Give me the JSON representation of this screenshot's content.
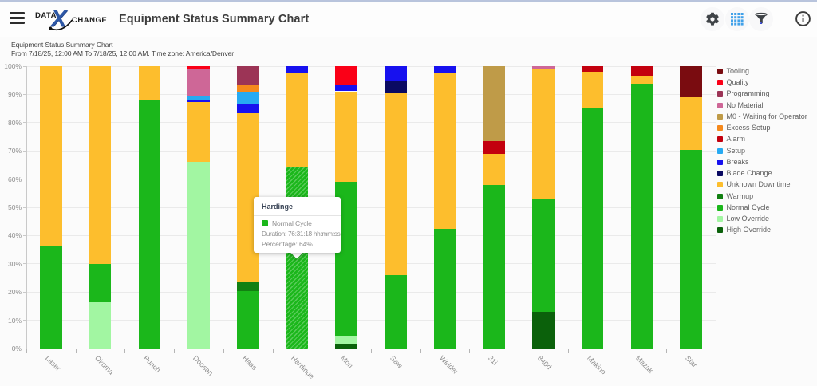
{
  "window": {
    "top_strip_color": "#b9c4dd"
  },
  "header": {
    "logo": {
      "part1": "DATA",
      "x": "X",
      "part2": "CHANGE"
    },
    "title": "Equipment Status Summary Chart",
    "icons": [
      "menu-icon",
      "gear-icon",
      "grid-icon",
      "filter-icon",
      "info-icon"
    ],
    "accent_blue": "#2d57a6",
    "grid_icon_color": "#41a1e9"
  },
  "chart": {
    "title": "Equipment Status Summary Chart",
    "subtitle": "From 7/18/25, 12:00 AM To 7/18/25, 12:00 AM. Time zone: America/Denver"
  },
  "tooltip": {
    "title": "Hardinge",
    "series": "Normal Cycle",
    "swatch_color": "#1BB71B",
    "duration_line": "Duration: 76:31:18 hh:mm:ss",
    "percentage_line": "Percentage: 64%"
  },
  "chart_data": {
    "type": "bar",
    "stacked": true,
    "title": "Equipment Status Summary Chart",
    "subtitle": "From 7/18/25, 12:00 AM To 7/18/25, 12:00 AM. Time zone: America/Denver",
    "xlabel": "",
    "ylabel": "",
    "ylim": [
      0,
      100
    ],
    "y_tick_labels": [
      "0%",
      "10%",
      "20%",
      "30%",
      "40%",
      "50%",
      "60%",
      "70%",
      "80%",
      "90%",
      "100%"
    ],
    "grid": true,
    "legend_position": "right",
    "categories": [
      "Laser",
      "Okuma",
      "Punch",
      "Doosan",
      "Haas",
      "Hardinge",
      "Mori",
      "Saw",
      "Welder",
      "31i",
      "840d",
      "Makino",
      "Mazak",
      "Star"
    ],
    "series": [
      {
        "name": "Tooling",
        "color": "#7A0C10",
        "values": [
          0,
          0,
          0,
          0,
          0,
          0,
          0,
          0,
          0,
          0,
          0,
          0,
          0,
          10.6
        ]
      },
      {
        "name": "Quality",
        "color": "#FA0017",
        "values": [
          0,
          0,
          0,
          0.9,
          0,
          0,
          6.8,
          0,
          0,
          0,
          0,
          0,
          0,
          0
        ]
      },
      {
        "name": "Programming",
        "color": "#9C3456",
        "values": [
          0,
          0,
          0,
          0,
          6.8,
          0,
          0,
          0,
          0,
          0,
          0,
          0,
          0,
          0
        ]
      },
      {
        "name": "No Material",
        "color": "#CE6797",
        "values": [
          0,
          0,
          0,
          9.6,
          0,
          0,
          0,
          0,
          0,
          0,
          1,
          0,
          0,
          0
        ]
      },
      {
        "name": "M0 - Waiting for Operator",
        "color": "#BF9B48",
        "values": [
          0,
          0,
          0,
          0,
          0,
          0,
          0,
          0,
          0,
          26.5,
          0,
          0,
          0,
          0
        ]
      },
      {
        "name": "Excess Setup",
        "color": "#F5891C",
        "values": [
          0,
          0,
          0,
          0,
          2.2,
          0,
          0,
          0,
          0,
          0,
          0,
          0,
          0,
          0
        ]
      },
      {
        "name": "Alarm",
        "color": "#C3000E",
        "values": [
          0,
          0,
          0,
          0,
          0,
          0,
          0,
          0,
          0,
          4.5,
          0,
          1.9,
          3.3,
          0
        ]
      },
      {
        "name": "Setup",
        "color": "#27AAF2",
        "values": [
          0,
          0,
          0,
          1.4,
          4.2,
          0,
          0,
          0,
          0,
          0,
          0,
          0,
          0,
          0
        ]
      },
      {
        "name": "Breaks",
        "color": "#1711EF",
        "values": [
          0,
          0,
          0,
          0.8,
          3.4,
          2.5,
          2.1,
          5.4,
          2.6,
          0,
          0,
          0,
          0,
          0
        ]
      },
      {
        "name": "Blade Change",
        "color": "#0A0A62",
        "values": [
          0,
          0,
          0,
          0,
          0,
          0,
          0,
          4.1,
          0,
          0,
          0,
          0,
          0,
          0
        ]
      },
      {
        "name": "Unknown Downtime",
        "color": "#FDBE2D",
        "values": [
          63.5,
          70,
          12,
          21.3,
          59.8,
          33.5,
          32,
          64.5,
          54.9,
          11,
          46.2,
          13,
          3,
          19.1
        ]
      },
      {
        "name": "Warmup",
        "color": "#128012",
        "values": [
          0,
          0,
          0,
          0,
          3.2,
          0,
          0,
          0,
          0,
          0,
          0,
          0,
          0,
          0
        ]
      },
      {
        "name": "Normal Cycle",
        "color": "#1BB71B",
        "values": [
          36.5,
          13.5,
          88,
          0,
          20.4,
          64,
          54.5,
          26,
          42.5,
          58,
          39.8,
          85.1,
          93.7,
          70.3
        ]
      },
      {
        "name": "Low Override",
        "color": "#A2F6A2",
        "values": [
          0,
          16.5,
          0,
          66,
          0,
          0,
          2.9,
          0,
          0,
          0,
          0,
          0,
          0,
          0
        ]
      },
      {
        "name": "High Override",
        "color": "#0B610B",
        "values": [
          0,
          0,
          0,
          0,
          0,
          0,
          1.7,
          0,
          0,
          0,
          13,
          0,
          0,
          0
        ]
      }
    ],
    "highlight": {
      "category": "Hardinge",
      "series": "Normal Cycle",
      "style": "hatched"
    }
  }
}
